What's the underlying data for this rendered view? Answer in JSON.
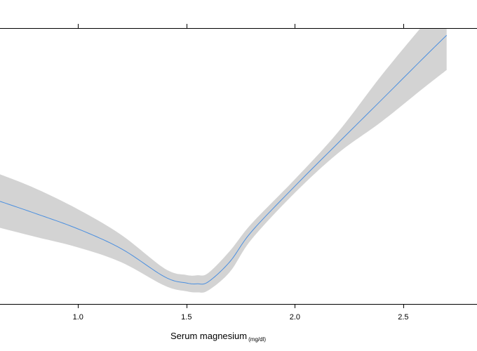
{
  "chart_data": {
    "type": "line",
    "xlabel": "Serum magnesium",
    "xlabel_subscript": "(mg/dl)",
    "xlim": [
      0.64,
      2.84
    ],
    "ylim": [
      0,
      1
    ],
    "xticks": [
      1.0,
      1.5,
      2.0,
      2.5
    ],
    "xtick_labels": [
      "1.0",
      "1.5",
      "2.0",
      "2.5"
    ],
    "grid": false,
    "colors": {
      "line": "#4a8fe0",
      "band": "#d3d3d3",
      "axis": "#000000"
    },
    "series": [
      {
        "x": [
          0.64,
          0.8,
          1.0,
          1.2,
          1.4,
          1.5,
          1.55,
          1.6,
          1.7,
          1.8,
          2.0,
          2.2,
          2.4,
          2.6,
          2.7
        ],
        "y": [
          0.372,
          0.329,
          0.272,
          0.2,
          0.098,
          0.076,
          0.073,
          0.08,
          0.153,
          0.262,
          0.427,
          0.584,
          0.74,
          0.897,
          0.974
        ],
        "lower": [
          0.276,
          0.244,
          0.205,
          0.151,
          0.066,
          0.046,
          0.042,
          0.049,
          0.116,
          0.234,
          0.403,
          0.547,
          0.661,
          0.787,
          0.848
        ],
        "upper": [
          0.47,
          0.42,
          0.343,
          0.25,
          0.128,
          0.105,
          0.104,
          0.112,
          0.192,
          0.291,
          0.452,
          0.624,
          0.829,
          1.019,
          1.109
        ]
      }
    ]
  }
}
